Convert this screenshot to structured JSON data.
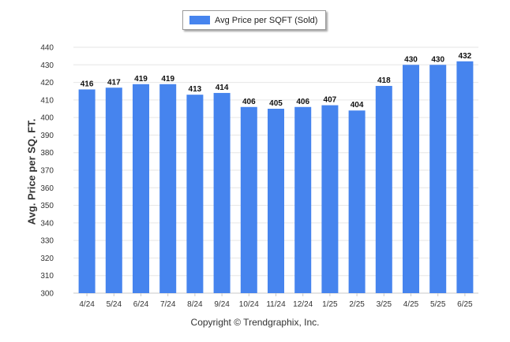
{
  "chart_data": {
    "type": "bar",
    "categories": [
      "4/24",
      "5/24",
      "6/24",
      "7/24",
      "8/24",
      "9/24",
      "10/24",
      "11/24",
      "12/24",
      "1/25",
      "2/25",
      "3/25",
      "4/25",
      "5/25",
      "6/25"
    ],
    "series": [
      {
        "name": "Avg Price per SQFT (Sold)",
        "values": [
          416,
          417,
          419,
          419,
          413,
          414,
          406,
          405,
          406,
          407,
          404,
          418,
          430,
          430,
          432
        ]
      }
    ],
    "ylabel": "Avg. Price per SQ. FT.",
    "xlabel": "",
    "ylim": [
      300,
      440
    ],
    "yticks": [
      300,
      310,
      320,
      330,
      340,
      350,
      360,
      370,
      380,
      390,
      400,
      410,
      420,
      430,
      440
    ],
    "grid": true,
    "legend_position": "top-center",
    "bar_color": "#4684ee"
  },
  "footer": {
    "copyright": "Copyright © Trendgraphix, Inc."
  }
}
